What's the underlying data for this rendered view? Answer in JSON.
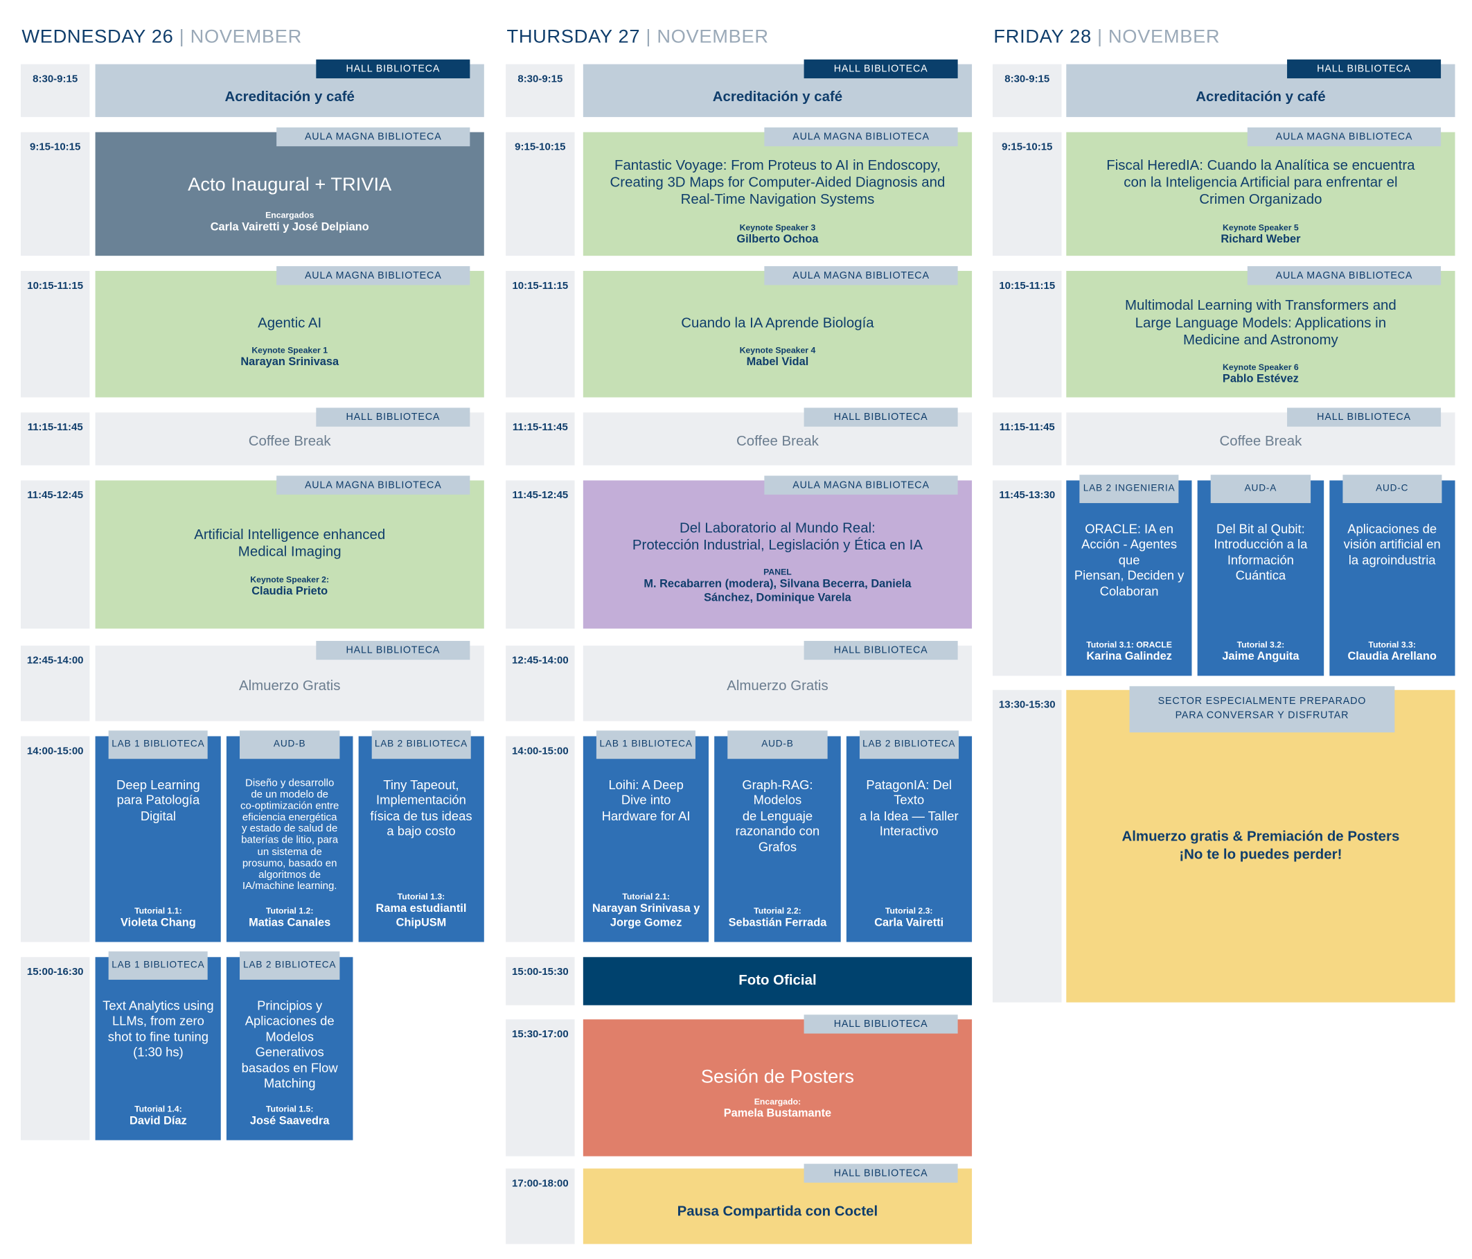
{
  "colors": {
    "navy": "#0a3f6b",
    "tag": "#c0ceda",
    "time": "#eceef1",
    "keynote": "#c6e0b5",
    "opening": "#6a8296",
    "tutorial": "#2f70b5",
    "panel": "#c3aed8",
    "poster": "#e07f6a",
    "yellow": "#f6d884",
    "foto": "#00426e"
  },
  "days": [
    {
      "day": "WEDNESDAY 26",
      "sep": "|",
      "month": "NOVEMBER",
      "slots": [
        {
          "time": "8:30-9:15",
          "events": [
            {
              "type": "accr",
              "room": "HALL BIBLIOTECA",
              "title": "Acreditación y café"
            }
          ]
        },
        {
          "time": "9:15-10:15",
          "events": [
            {
              "type": "open",
              "room": "AULA MAGNA BIBLIOTECA",
              "title": "Acto Inaugural + TRIVIA",
              "label": "Encargados",
              "speaker": "Carla Vairetti y José Delpiano"
            }
          ]
        },
        {
          "time": "10:15-11:15",
          "events": [
            {
              "type": "keynote",
              "room": "AULA MAGNA BIBLIOTECA",
              "title": "Agentic AI",
              "label": "Keynote Speaker 1",
              "speaker": "Narayan Srinivasa"
            }
          ]
        },
        {
          "time": "11:15-11:45",
          "events": [
            {
              "type": "break",
              "room": "HALL BIBLIOTECA",
              "title": "Coffee Break"
            }
          ]
        },
        {
          "time": "11:45-12:45",
          "events": [
            {
              "type": "keynote",
              "room": "AULA MAGNA BIBLIOTECA",
              "title": "Artificial Intelligence enhanced\nMedical Imaging",
              "label": "Keynote Speaker 2:",
              "speaker": "Claudia Prieto"
            }
          ]
        },
        {
          "time": "12:45-14:00",
          "events": [
            {
              "type": "break",
              "room": "HALL BIBLIOTECA",
              "title": "Almuerzo Gratis"
            }
          ]
        },
        {
          "time": "14:00-15:00",
          "events": [
            {
              "type": "tut",
              "room": "LAB 1 BIBLIOTECA",
              "title": "Deep Learning\npara Patología\nDigital",
              "label": "Tutorial 1.1:",
              "speaker": "Violeta Chang"
            },
            {
              "type": "tut",
              "room": "AUD-B",
              "title": "Diseño y desarrollo\nde un modelo de\nco-optimización entre\neficiencia energética\ny estado de salud de\nbaterías de litio, para\nun sistema de\nprosumo, basado en\nalgoritmos de\nIA/machine learning.",
              "small": true,
              "label": "Tutorial 1.2:",
              "speaker": "Matias Canales"
            },
            {
              "type": "tut",
              "room": "LAB 2 BIBLIOTECA",
              "title": "Tiny Tapeout,\nImplementación\nfísica de tus ideas\na bajo costo",
              "label": "Tutorial 1.3:",
              "speaker": "Rama estudiantil\nChipUSM"
            }
          ]
        },
        {
          "time": "15:00-16:30",
          "events": [
            {
              "type": "tut",
              "room": "LAB 1 BIBLIOTECA",
              "title": "Text Analytics using\nLLMs, from zero\nshot to fine tuning\n(1:30 hs)",
              "label": "Tutorial 1.4:",
              "speaker": "David Díaz"
            },
            {
              "type": "tut",
              "room": "LAB 2 BIBLIOTECA",
              "title": "Principios y\nAplicaciones de\nModelos\nGenerativos\nbasados en Flow\nMatching",
              "label": "Tutorial 1.5:",
              "speaker": "José Saavedra"
            }
          ]
        }
      ]
    },
    {
      "day": "THURSDAY 27",
      "sep": "|",
      "month": "NOVEMBER",
      "slots": [
        {
          "time": "8:30-9:15",
          "events": [
            {
              "type": "accr",
              "room": "HALL BIBLIOTECA",
              "title": "Acreditación y café"
            }
          ]
        },
        {
          "time": "9:15-10:15",
          "events": [
            {
              "type": "keynote",
              "room": "AULA MAGNA BIBLIOTECA",
              "title": "Fantastic Voyage: From Proteus to AI in Endoscopy,\nCreating 3D Maps for Computer-Aided Diagnosis and\nReal-Time Navigation Systems",
              "label": "Keynote Speaker 3",
              "speaker": "Gilberto Ochoa"
            }
          ]
        },
        {
          "time": "10:15-11:15",
          "events": [
            {
              "type": "keynote",
              "room": "AULA MAGNA BIBLIOTECA",
              "title": "Cuando la IA Aprende Biología",
              "label": "Keynote Speaker 4",
              "speaker": "Mabel Vidal"
            }
          ]
        },
        {
          "time": "11:15-11:45",
          "events": [
            {
              "type": "break",
              "room": "HALL BIBLIOTECA",
              "title": "Coffee Break"
            }
          ]
        },
        {
          "time": "11:45-12:45",
          "events": [
            {
              "type": "panel",
              "room": "AULA MAGNA BIBLIOTECA",
              "title": "Del Laboratorio al Mundo Real:\nProtección Industrial, Legislación y Ética en IA",
              "label": "PANEL",
              "speaker": "M. Recabarren (modera), Silvana Becerra, Daniela\nSánchez, Dominique Varela"
            }
          ]
        },
        {
          "time": "12:45-14:00",
          "events": [
            {
              "type": "break",
              "room": "HALL BIBLIOTECA",
              "title": "Almuerzo Gratis"
            }
          ]
        },
        {
          "time": "14:00-15:00",
          "events": [
            {
              "type": "tut",
              "room": "LAB 1 BIBLIOTECA",
              "title": "Loihi: A Deep\nDive into\nHardware for AI",
              "label": "Tutorial 2.1:",
              "speaker": "Narayan Srinivasa y\nJorge Gomez"
            },
            {
              "type": "tut",
              "room": "AUD-B",
              "title": "Graph-RAG: Modelos\nde Lenguaje\nrazonando con\nGrafos",
              "label": "Tutorial 2.2:",
              "speaker": "Sebastián Ferrada"
            },
            {
              "type": "tut",
              "room": "LAB 2 BIBLIOTECA",
              "title": "PatagonIA: Del Texto\na la Idea — Taller\nInteractivo",
              "label": "Tutorial 2.3:",
              "speaker": "Carla Vairetti"
            }
          ]
        },
        {
          "time": "15:00-15:30",
          "events": [
            {
              "type": "foto",
              "title": "Foto Oficial"
            }
          ]
        },
        {
          "time": "15:30-17:00",
          "events": [
            {
              "type": "poster",
              "room": "HALL BIBLIOTECA",
              "title": "Sesión de Posters",
              "label": "Encargado:",
              "speaker": "Pamela Bustamante"
            }
          ]
        },
        {
          "time": "17:00-18:00",
          "events": [
            {
              "type": "yellow",
              "room": "HALL BIBLIOTECA",
              "title": "Pausa Compartida con Coctel"
            }
          ]
        }
      ]
    },
    {
      "day": "FRIDAY 28",
      "sep": "|",
      "month": "NOVEMBER",
      "slots": [
        {
          "time": "8:30-9:15",
          "events": [
            {
              "type": "accr",
              "room": "HALL BIBLIOTECA",
              "title": "Acreditación y café"
            }
          ]
        },
        {
          "time": "9:15-10:15",
          "events": [
            {
              "type": "keynote",
              "room": "AULA MAGNA BIBLIOTECA",
              "title": "Fiscal HeredIA: Cuando la Analítica se encuentra\ncon la Inteligencia Artificial para enfrentar el\nCrimen Organizado",
              "label": "Keynote Speaker 5",
              "speaker": "Richard Weber"
            }
          ]
        },
        {
          "time": "10:15-11:15",
          "events": [
            {
              "type": "keynote",
              "room": "AULA MAGNA BIBLIOTECA",
              "title": "Multimodal Learning with Transformers and\nLarge Language Models: Applications in\nMedicine and Astronomy",
              "label": "Keynote Speaker 6",
              "speaker": "Pablo Estévez"
            }
          ]
        },
        {
          "time": "11:15-11:45",
          "events": [
            {
              "type": "break",
              "room": "HALL BIBLIOTECA",
              "title": "Coffee Break"
            }
          ]
        },
        {
          "time": "11:45-13:30",
          "events": [
            {
              "type": "tut",
              "room": "LAB 2 INGENIERIA",
              "title": "ORACLE: IA en\nAcción - Agentes que\nPiensan, Deciden y\nColaboran",
              "label": "Tutorial 3.1: ORACLE",
              "speaker": "Karina Galindez"
            },
            {
              "type": "tut",
              "room": "AUD-A",
              "title": "Del Bit al Qubit:\nIntroducción a la\nInformación\nCuántica",
              "label": "Tutorial 3.2:",
              "speaker": "Jaime Anguita"
            },
            {
              "type": "tut",
              "room": "AUD-C",
              "title": "Aplicaciones de\nvisión artificial en\nla agroindustria",
              "label": "Tutorial 3.3:",
              "speaker": "Claudia Arellano"
            }
          ]
        },
        {
          "time": "13:30-15:30",
          "events": [
            {
              "type": "big",
              "room": "SECTOR ESPECIALMENTE PREPARADO\nPARA CONVERSAR Y DISFRUTAR",
              "title": "Almuerzo gratis & Premiación de Posters\n¡No te lo puedes perder!"
            }
          ]
        }
      ]
    }
  ]
}
